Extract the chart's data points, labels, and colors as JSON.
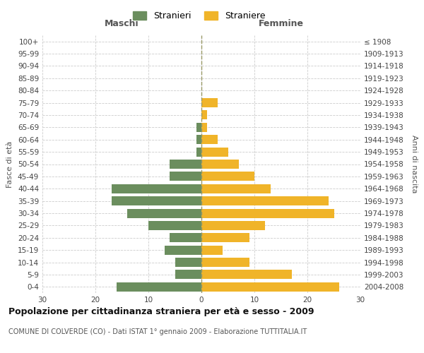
{
  "age_groups": [
    "0-4",
    "5-9",
    "10-14",
    "15-19",
    "20-24",
    "25-29",
    "30-34",
    "35-39",
    "40-44",
    "45-49",
    "50-54",
    "55-59",
    "60-64",
    "65-69",
    "70-74",
    "75-79",
    "80-84",
    "85-89",
    "90-94",
    "95-99",
    "100+"
  ],
  "birth_years": [
    "2004-2008",
    "1999-2003",
    "1994-1998",
    "1989-1993",
    "1984-1988",
    "1979-1983",
    "1974-1978",
    "1969-1973",
    "1964-1968",
    "1959-1963",
    "1954-1958",
    "1949-1953",
    "1944-1948",
    "1939-1943",
    "1934-1938",
    "1929-1933",
    "1924-1928",
    "1919-1923",
    "1914-1918",
    "1909-1913",
    "≤ 1908"
  ],
  "maschi": [
    16,
    5,
    5,
    7,
    6,
    10,
    14,
    17,
    17,
    6,
    6,
    1,
    1,
    1,
    0,
    0,
    0,
    0,
    0,
    0,
    0
  ],
  "femmine": [
    26,
    17,
    9,
    4,
    9,
    12,
    25,
    24,
    13,
    10,
    7,
    5,
    3,
    1,
    1,
    3,
    0,
    0,
    0,
    0,
    0
  ],
  "male_color": "#6b8e5e",
  "female_color": "#f0b429",
  "background_color": "#ffffff",
  "grid_color": "#cccccc",
  "center_line_color": "#999966",
  "title": "Popolazione per cittadinanza straniera per età e sesso - 2009",
  "subtitle": "COMUNE DI COLVERDE (CO) - Dati ISTAT 1° gennaio 2009 - Elaborazione TUTTITALIA.IT",
  "xlabel_left": "Maschi",
  "xlabel_right": "Femmine",
  "ylabel_left": "Fasce di età",
  "ylabel_right": "Anni di nascita",
  "legend_male": "Stranieri",
  "legend_female": "Straniere",
  "xlim": 30,
  "xticks": [
    -30,
    -20,
    -10,
    0,
    10,
    20,
    30
  ]
}
